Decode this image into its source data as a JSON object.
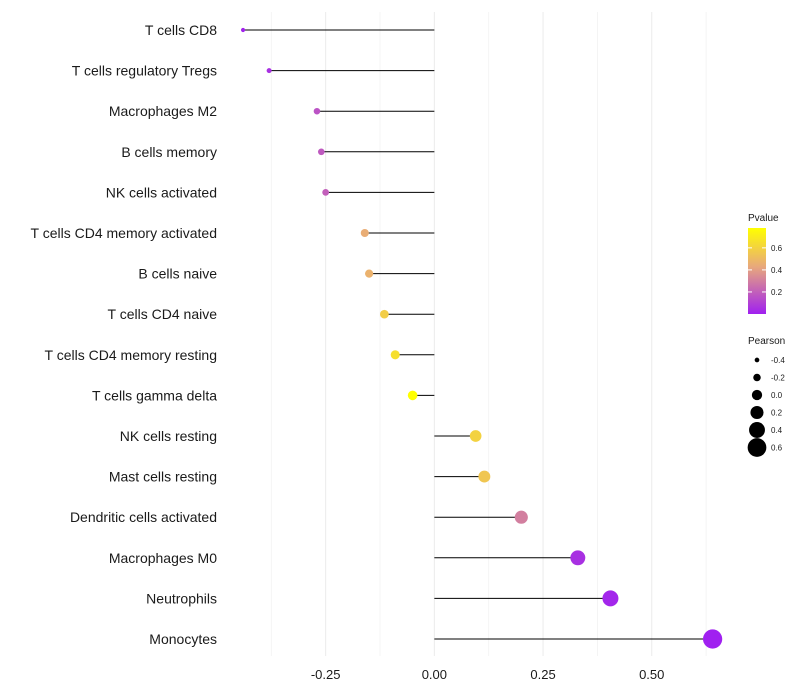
{
  "chart_data": {
    "type": "lollipop",
    "title": "",
    "xlabel": "",
    "ylabel": "",
    "xlim": [
      -0.47,
      0.68
    ],
    "xticks": [
      -0.25,
      0.0,
      0.25,
      0.5
    ],
    "xtick_labels": [
      "-0.25",
      "0.00",
      "0.25",
      "0.50"
    ],
    "baseline": 0,
    "categories": [
      "T cells CD8",
      "T cells regulatory  Tregs",
      "Macrophages M2",
      "B cells memory",
      "NK cells activated",
      "T cells CD4 memory activated",
      "B cells naive",
      "T cells CD4 naive",
      "T cells CD4 memory resting",
      "T cells gamma delta",
      "NK cells resting",
      "Mast cells resting",
      "Dendritic cells activated",
      "Macrophages M0",
      "Neutrophils",
      "Monocytes"
    ],
    "pearson": [
      -0.44,
      -0.38,
      -0.27,
      -0.26,
      -0.25,
      -0.16,
      -0.15,
      -0.115,
      -0.09,
      -0.05,
      0.095,
      0.115,
      0.2,
      0.33,
      0.405,
      0.64
    ],
    "pvalue": [
      0.01,
      0.05,
      0.16,
      0.18,
      0.2,
      0.45,
      0.47,
      0.58,
      0.65,
      0.78,
      0.6,
      0.55,
      0.3,
      0.05,
      0.02,
      0.001
    ],
    "color_legend": {
      "title": "Pvalue",
      "ticks": [
        0.2,
        0.4,
        0.6
      ],
      "tick_labels": [
        "0.2",
        "0.4",
        "0.6"
      ],
      "range": [
        0.0,
        0.78
      ],
      "low_color": "#a020f0",
      "mid_color": "#e8a87c",
      "high_color": "#ffff00"
    },
    "size_legend": {
      "title": "Pearson",
      "values": [
        -0.4,
        -0.2,
        0.0,
        0.2,
        0.4,
        0.6
      ],
      "labels": [
        "-0.4",
        "-0.2",
        "0.0",
        "0.2",
        "0.4",
        "0.6"
      ]
    },
    "grid": true,
    "legend_position": "right"
  }
}
